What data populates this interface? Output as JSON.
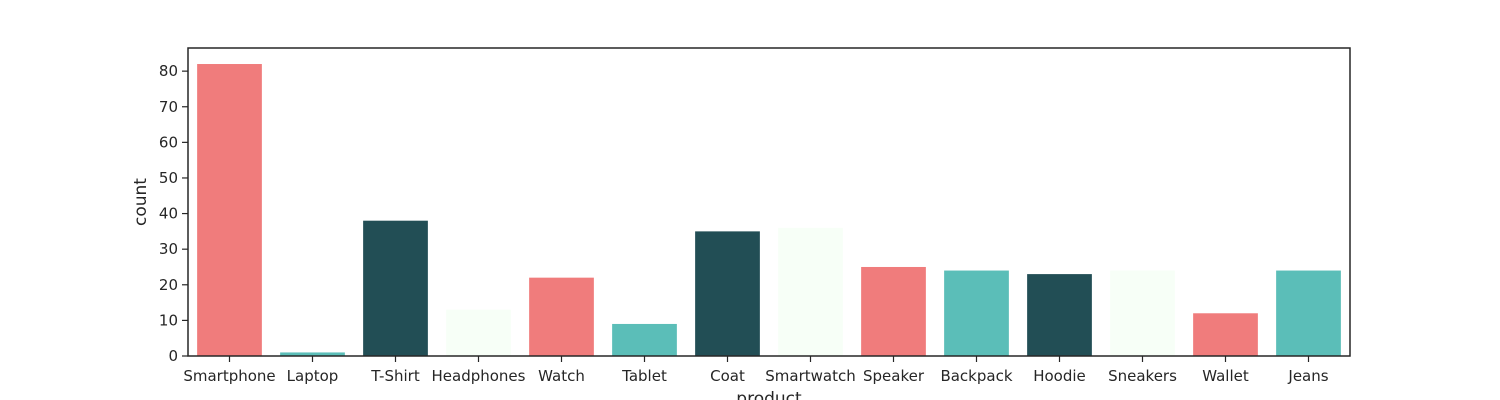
{
  "chart_data": {
    "type": "bar",
    "xlabel": "product",
    "ylabel": "count",
    "categories": [
      "Smartphone",
      "Laptop",
      "T-Shirt",
      "Headphones",
      "Watch",
      "Tablet",
      "Coat",
      "Smartwatch",
      "Speaker",
      "Backpack",
      "Hoodie",
      "Sneakers",
      "Wallet",
      "Jeans"
    ],
    "values": [
      82,
      1,
      38,
      13,
      22,
      9,
      35,
      36,
      25,
      24,
      23,
      24,
      12,
      24
    ],
    "bar_colors": [
      "#f07c7c",
      "#5bbeb8",
      "#224e55",
      "#f7fff7",
      "#f07c7c",
      "#5bbeb8",
      "#224e55",
      "#f7fff7",
      "#f07c7c",
      "#5bbeb8",
      "#224e55",
      "#f7fff7",
      "#f07c7c",
      "#5bbeb8"
    ],
    "ylim": [
      0,
      86.5
    ],
    "yticks": [
      0,
      10,
      20,
      30,
      40,
      50,
      60,
      70,
      80
    ],
    "grid": false,
    "legend": "none"
  }
}
